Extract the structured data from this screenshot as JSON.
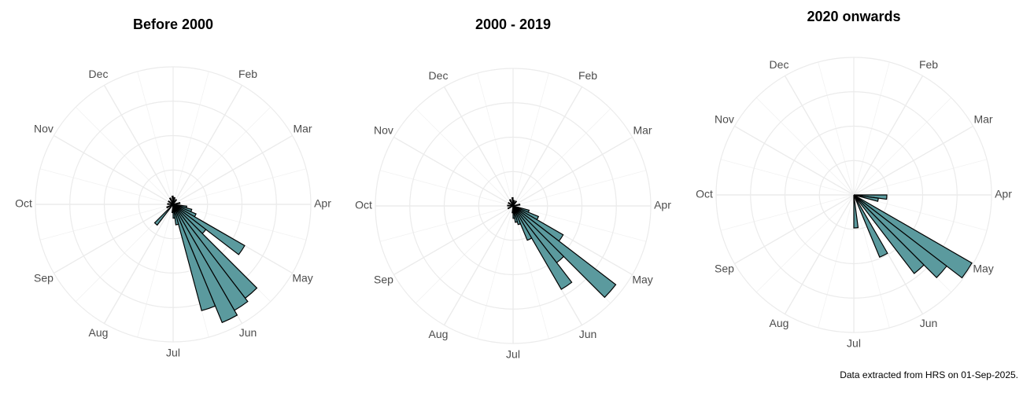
{
  "chart_data": [
    {
      "type": "polar_bar",
      "title": "Before 2000",
      "color": "#5b9a9e",
      "x": [
        0.375,
        1.125,
        2.625,
        3.375,
        3.625,
        3.875,
        4.125,
        4.375,
        4.625,
        4.875,
        5.125,
        5.375,
        5.625,
        5.875,
        6.125,
        7.375,
        8.125,
        9.125,
        10.125,
        11.125,
        11.875
      ],
      "values": [
        5,
        4,
        5,
        10,
        14,
        18,
        60,
        30,
        86,
        89,
        93,
        80,
        15,
        10,
        6,
        19,
        5,
        4,
        4,
        5,
        6
      ],
      "xlim": [
        0,
        12
      ],
      "xticks": [
        {
          "value": 1,
          "label": "Feb"
        },
        {
          "value": 2,
          "label": "Mar"
        },
        {
          "value": 3,
          "label": "Apr"
        },
        {
          "value": 4,
          "label": "May"
        },
        {
          "value": 5,
          "label": "Jun"
        },
        {
          "value": 6,
          "label": "Jul"
        },
        {
          "value": 7,
          "label": "Aug"
        },
        {
          "value": 8,
          "label": "Sep"
        },
        {
          "value": 9,
          "label": "Oct"
        },
        {
          "value": 10,
          "label": "Nov"
        },
        {
          "value": 11,
          "label": "Dec"
        }
      ],
      "rlim": [
        0,
        100
      ],
      "rticks": [
        25,
        50,
        75,
        100
      ]
    },
    {
      "type": "polar_bar",
      "title": "2000 - 2019",
      "color": "#5b9a9e",
      "x": [
        0.375,
        1.125,
        2.625,
        3.625,
        3.875,
        4.125,
        4.375,
        4.625,
        4.875,
        5.125,
        5.375,
        5.625,
        5.875,
        6.125,
        8.125,
        9.125,
        10.125,
        11.125,
        11.875
      ],
      "values": [
        4,
        4,
        5,
        12,
        20,
        42,
        94,
        52,
        70,
        27,
        14,
        12,
        9,
        5,
        4,
        4,
        4,
        5,
        6
      ],
      "xlim": [
        0,
        12
      ],
      "xticks": [
        {
          "value": 1,
          "label": "Feb"
        },
        {
          "value": 2,
          "label": "Mar"
        },
        {
          "value": 3,
          "label": "Apr"
        },
        {
          "value": 4,
          "label": "May"
        },
        {
          "value": 5,
          "label": "Jun"
        },
        {
          "value": 6,
          "label": "Jul"
        },
        {
          "value": 7,
          "label": "Aug"
        },
        {
          "value": 8,
          "label": "Sep"
        },
        {
          "value": 9,
          "label": "Oct"
        },
        {
          "value": 10,
          "label": "Nov"
        },
        {
          "value": 11,
          "label": "Dec"
        }
      ],
      "rlim": [
        0,
        100
      ],
      "rticks": [
        25,
        50,
        75,
        100
      ]
    },
    {
      "type": "polar_bar",
      "title": "2020 onwards",
      "color": "#5b9a9e",
      "x": [
        3.125,
        3.375,
        4.125,
        4.375,
        4.625,
        5.125,
        5.875
      ],
      "values": [
        24,
        18,
        99,
        85,
        72,
        49,
        24
      ],
      "xlim": [
        0,
        12
      ],
      "xticks": [
        {
          "value": 1,
          "label": "Feb"
        },
        {
          "value": 2,
          "label": "Mar"
        },
        {
          "value": 3,
          "label": "Apr"
        },
        {
          "value": 4,
          "label": "May"
        },
        {
          "value": 5,
          "label": "Jun"
        },
        {
          "value": 6,
          "label": "Jul"
        },
        {
          "value": 7,
          "label": "Aug"
        },
        {
          "value": 8,
          "label": "Sep"
        },
        {
          "value": 9,
          "label": "Oct"
        },
        {
          "value": 10,
          "label": "Nov"
        },
        {
          "value": 11,
          "label": "Dec"
        }
      ],
      "rlim": [
        0,
        100
      ],
      "rticks": [
        25,
        50,
        75,
        100
      ]
    }
  ],
  "caption": "Data extracted from HRS on 01-Sep-2025."
}
